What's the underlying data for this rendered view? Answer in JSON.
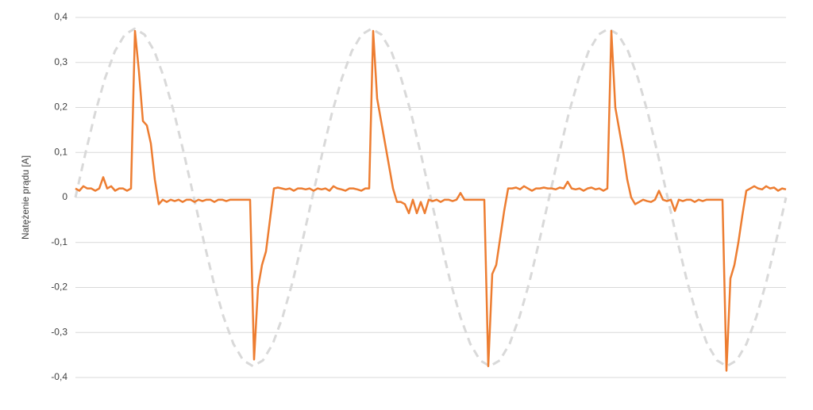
{
  "chart_data": {
    "type": "line",
    "y_label": "Natężenie prądu [A]",
    "ylim": [
      -0.4,
      0.4
    ],
    "yticks": [
      {
        "value": -0.4,
        "label": "-0,4"
      },
      {
        "value": -0.3,
        "label": "-0,3"
      },
      {
        "value": -0.2,
        "label": "-0,2"
      },
      {
        "value": -0.1,
        "label": "-0,1"
      },
      0,
      {
        "value": 0.1,
        "label": "0,1"
      },
      {
        "value": 0.2,
        "label": "0,2"
      },
      {
        "value": 0.3,
        "label": "0,3"
      },
      {
        "value": 0.4,
        "label": "0,4"
      }
    ],
    "grid": true,
    "series": [
      {
        "color": "#d9d9d9",
        "dashed": true,
        "values": [
          0,
          0.097,
          0.188,
          0.265,
          0.325,
          0.362,
          0.375,
          0.362,
          0.325,
          0.265,
          0.188,
          0.097,
          0,
          -0.097,
          -0.188,
          -0.265,
          -0.325,
          -0.362,
          -0.375,
          -0.362,
          -0.325,
          -0.265,
          -0.188,
          -0.097,
          0,
          0.097,
          0.188,
          0.265,
          0.325,
          0.362,
          0.375,
          0.362,
          0.325,
          0.265,
          0.188,
          0.097,
          0,
          -0.097,
          -0.188,
          -0.265,
          -0.325,
          -0.362,
          -0.375,
          -0.362,
          -0.325,
          -0.265,
          -0.188,
          -0.097,
          0,
          0.097,
          0.188,
          0.265,
          0.325,
          0.362,
          0.375,
          0.362,
          0.325,
          0.265,
          0.188,
          0.097,
          0,
          -0.097,
          -0.188,
          -0.265,
          -0.325,
          -0.362,
          -0.375,
          -0.362,
          -0.325,
          -0.265,
          -0.188,
          -0.097,
          0
        ]
      },
      {
        "color": "#ed7d31",
        "dashed": false,
        "values": [
          0.02,
          0.015,
          0.025,
          0.02,
          0.02,
          0.015,
          0.02,
          0.045,
          0.02,
          0.025,
          0.015,
          0.02,
          0.02,
          0.015,
          0.02,
          0.37,
          0.28,
          0.17,
          0.16,
          0.12,
          0.04,
          -0.015,
          -0.005,
          -0.01,
          -0.005,
          -0.008,
          -0.005,
          -0.01,
          -0.005,
          -0.005,
          -0.01,
          -0.005,
          -0.008,
          -0.005,
          -0.005,
          -0.01,
          -0.005,
          -0.005,
          -0.008,
          -0.005,
          -0.005,
          -0.005,
          -0.005,
          -0.005,
          -0.005,
          -0.36,
          -0.2,
          -0.15,
          -0.12,
          -0.05,
          0.02,
          0.022,
          0.02,
          0.018,
          0.02,
          0.015,
          0.02,
          0.02,
          0.018,
          0.02,
          0.015,
          0.02,
          0.018,
          0.02,
          0.015,
          0.025,
          0.02,
          0.018,
          0.015,
          0.02,
          0.02,
          0.018,
          0.015,
          0.02,
          0.02,
          0.37,
          0.22,
          0.17,
          0.12,
          0.07,
          0.02,
          -0.01,
          -0.01,
          -0.015,
          -0.035,
          -0.005,
          -0.035,
          -0.01,
          -0.035,
          -0.005,
          -0.008,
          -0.005,
          -0.01,
          -0.005,
          -0.005,
          -0.008,
          -0.005,
          0.01,
          -0.005,
          -0.005,
          -0.005,
          -0.005,
          -0.005,
          -0.005,
          -0.375,
          -0.17,
          -0.15,
          -0.09,
          -0.03,
          0.02,
          0.02,
          0.022,
          0.018,
          0.025,
          0.02,
          0.015,
          0.02,
          0.02,
          0.022,
          0.02,
          0.02,
          0.018,
          0.022,
          0.02,
          0.035,
          0.02,
          0.018,
          0.02,
          0.015,
          0.02,
          0.022,
          0.018,
          0.02,
          0.015,
          0.02,
          0.37,
          0.2,
          0.15,
          0.1,
          0.04,
          0.0,
          -0.015,
          -0.01,
          -0.005,
          -0.008,
          -0.01,
          -0.005,
          0.015,
          -0.005,
          -0.008,
          -0.005,
          -0.03,
          -0.005,
          -0.008,
          -0.005,
          -0.005,
          -0.01,
          -0.005,
          -0.008,
          -0.005,
          -0.005,
          -0.005,
          -0.005,
          -0.005,
          -0.385,
          -0.18,
          -0.15,
          -0.1,
          -0.04,
          0.015,
          0.02,
          0.025,
          0.02,
          0.018,
          0.025,
          0.02,
          0.022,
          0.015,
          0.02,
          0.018
        ]
      }
    ]
  }
}
